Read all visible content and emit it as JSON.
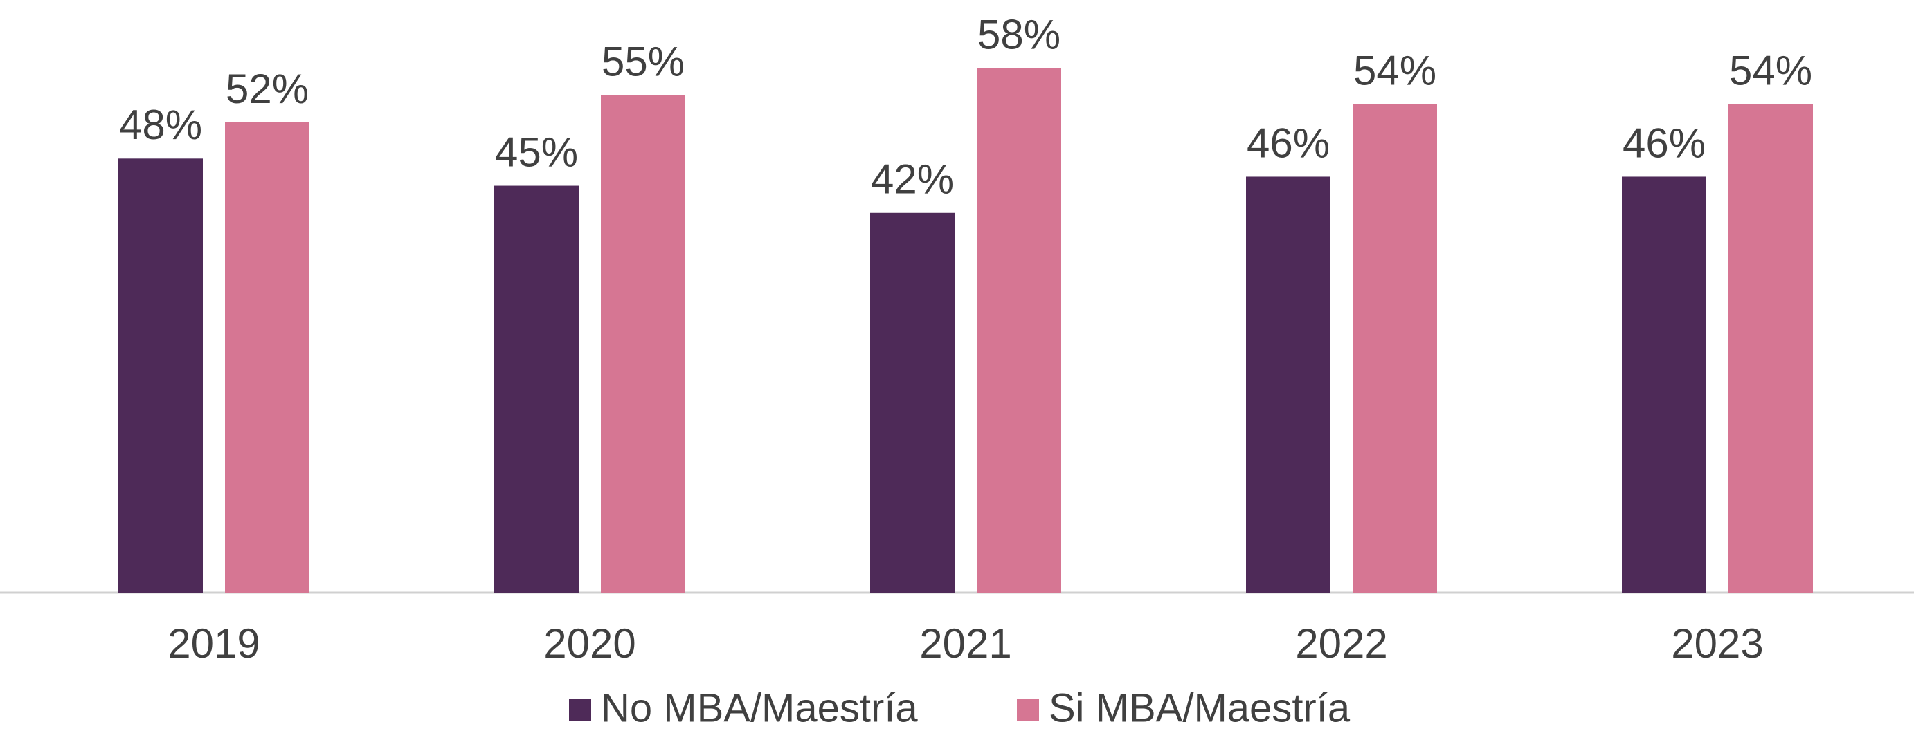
{
  "chart_data": {
    "type": "bar",
    "categories": [
      "2019",
      "2020",
      "2021",
      "2022",
      "2023"
    ],
    "series": [
      {
        "name": "No MBA/Maestría",
        "color": "#4e2a58",
        "values": [
          48,
          45,
          42,
          46,
          46
        ],
        "value_labels": [
          "48%",
          "45%",
          "42%",
          "46%",
          "46%"
        ]
      },
      {
        "name": "Si MBA/Maestría",
        "color": "#d67693",
        "values": [
          52,
          55,
          58,
          54,
          54
        ],
        "value_labels": [
          "52%",
          "55%",
          "58%",
          "54%",
          "54%"
        ]
      }
    ],
    "ylim": [
      0,
      65
    ],
    "legend": "bottom"
  }
}
